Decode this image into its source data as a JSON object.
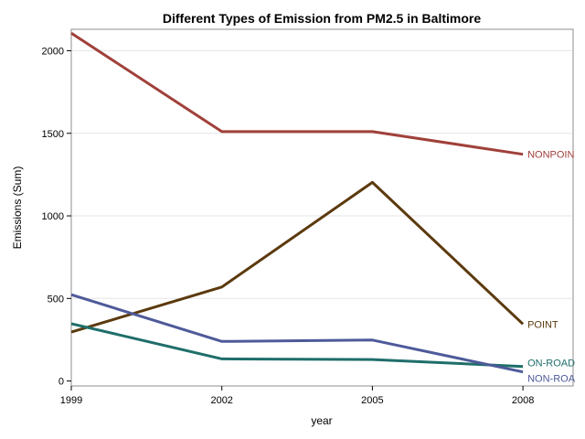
{
  "chart_data": {
    "type": "line",
    "title": "Different Types of Emission from PM2.5 in Baltimore",
    "xlabel": "year",
    "ylabel": "Emissions (Sum)",
    "x": [
      1999,
      2002,
      2005,
      2008
    ],
    "x_ticks": [
      "1999",
      "2002",
      "2005",
      "2008"
    ],
    "y_ticks": [
      "0",
      "500",
      "1000",
      "1500",
      "2000"
    ],
    "xlim": [
      1999,
      2009
    ],
    "ylim": [
      -30,
      2130
    ],
    "grid": "horizontal",
    "legend": "none",
    "series": [
      {
        "name": "NONPOIN",
        "label": "NONPOIN",
        "color": "#a0403a",
        "values": [
          2107,
          1510,
          1510,
          1373
        ]
      },
      {
        "name": "POINT",
        "label": "POINT",
        "color": "#5c3a0e",
        "values": [
          296,
          569,
          1203,
          345
        ]
      },
      {
        "name": "ON-ROAD",
        "label": "ON-ROAD",
        "color": "#1f6e6a",
        "values": [
          347,
          134,
          130,
          88
        ]
      },
      {
        "name": "NON-ROA",
        "label": "NON-ROA",
        "color": "#4e5a9a",
        "values": [
          523,
          240,
          248,
          55
        ]
      }
    ]
  }
}
